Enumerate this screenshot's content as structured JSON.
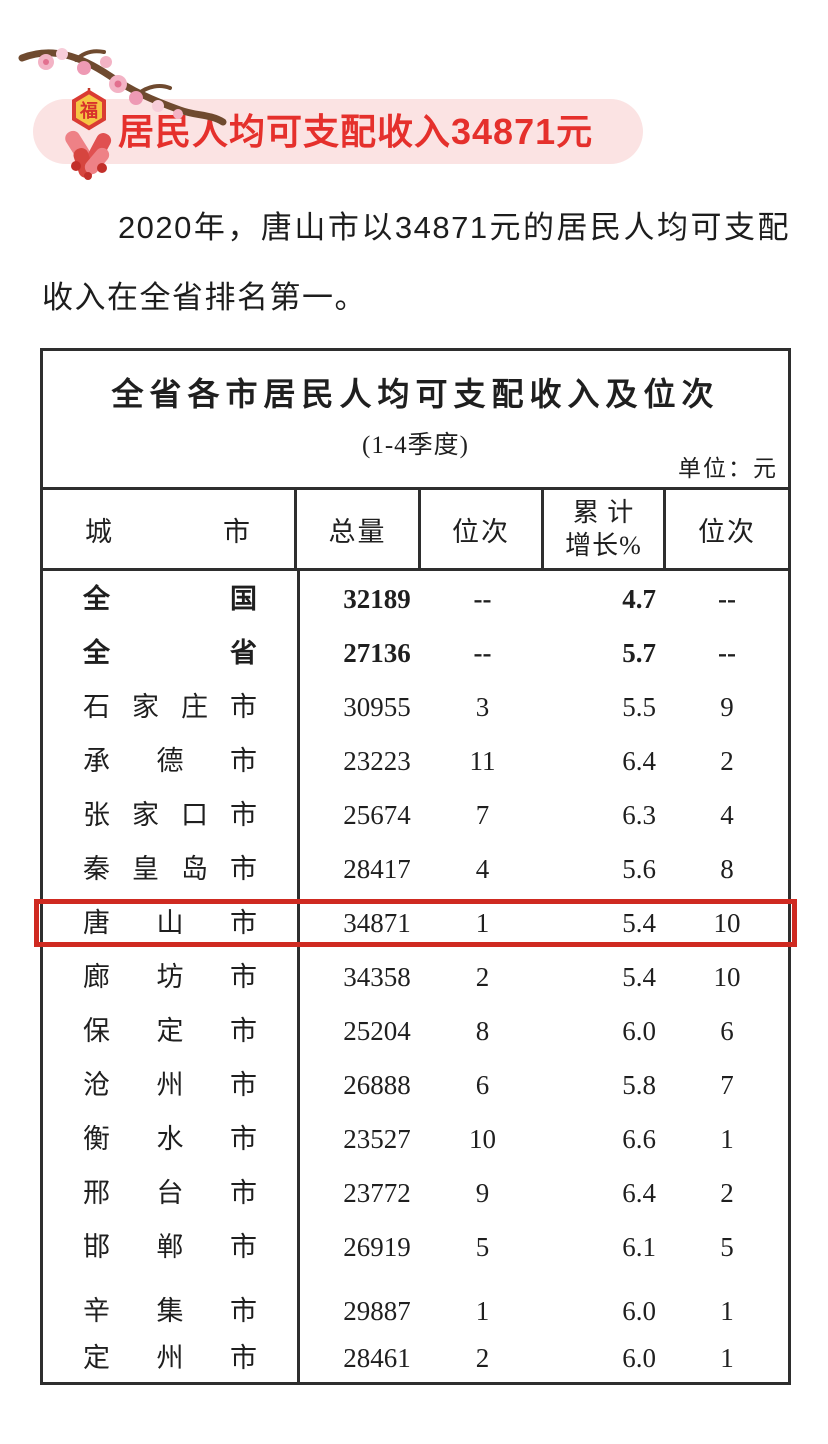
{
  "banner": {
    "title": "居民人均可支配收入34871元"
  },
  "decoration": {
    "fu": "福"
  },
  "paragraph": {
    "text": "2020年，唐山市以34871元的居民人均可支配收入在全省排名第一。"
  },
  "table": {
    "title": "全省各市居民人均可支配收入及位次",
    "subtitle": "(1-4季度)",
    "unit": "单位：元",
    "header": {
      "city": "城市",
      "total": "总量",
      "rank": "位次",
      "growth": "累  计\n增长%",
      "growth_rank": "位次"
    },
    "rows": [
      {
        "city": "全国",
        "total": "32189",
        "rank": "--",
        "growth": "4.7",
        "growth_rank": "--"
      },
      {
        "city": "全省",
        "total": "27136",
        "rank": "--",
        "growth": "5.7",
        "growth_rank": "--"
      },
      {
        "city": "石家庄市",
        "total": "30955",
        "rank": "3",
        "growth": "5.5",
        "growth_rank": "9"
      },
      {
        "city": "承德市",
        "total": "23223",
        "rank": "11",
        "growth": "6.4",
        "growth_rank": "2"
      },
      {
        "city": "张家口市",
        "total": "25674",
        "rank": "7",
        "growth": "6.3",
        "growth_rank": "4"
      },
      {
        "city": "秦皇岛市",
        "total": "28417",
        "rank": "4",
        "growth": "5.6",
        "growth_rank": "8"
      },
      {
        "city": "唐山市",
        "total": "34871",
        "rank": "1",
        "growth": "5.4",
        "growth_rank": "10"
      },
      {
        "city": "廊坊市",
        "total": "34358",
        "rank": "2",
        "growth": "5.4",
        "growth_rank": "10"
      },
      {
        "city": "保定市",
        "total": "25204",
        "rank": "8",
        "growth": "6.0",
        "growth_rank": "6"
      },
      {
        "city": "沧州市",
        "total": "26888",
        "rank": "6",
        "growth": "5.8",
        "growth_rank": "7"
      },
      {
        "city": "衡水市",
        "total": "23527",
        "rank": "10",
        "growth": "6.6",
        "growth_rank": "1"
      },
      {
        "city": "邢台市",
        "total": "23772",
        "rank": "9",
        "growth": "6.4",
        "growth_rank": "2"
      },
      {
        "city": "邯郸市",
        "total": "26919",
        "rank": "5",
        "growth": "6.1",
        "growth_rank": "5"
      },
      {
        "city": "辛集市",
        "total": "29887",
        "rank": "1",
        "growth": "6.0",
        "growth_rank": "1"
      },
      {
        "city": "定州市",
        "total": "28461",
        "rank": "2",
        "growth": "6.0",
        "growth_rank": "1"
      }
    ]
  },
  "colors": {
    "banner_bg": "#fbe3e3",
    "banner_text": "#e5302c",
    "highlight_border": "#cf2a21",
    "table_border": "#2e2e2e"
  }
}
